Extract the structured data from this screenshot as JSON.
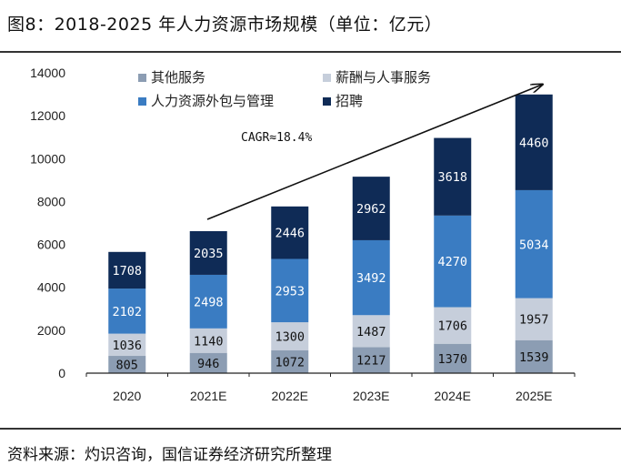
{
  "page": {
    "title": "图8：2018-2025 年人力资源市场规模（单位：亿元）",
    "source": "资料来源：灼识咨询，国信证券经济研究所整理"
  },
  "chart_data": {
    "type": "stacked-bar",
    "title": "图8：2018-2025 年人力资源市场规模（单位：亿元）",
    "unit": "亿元",
    "categories": [
      "2020",
      "2021E",
      "2022E",
      "2023E",
      "2024E",
      "2025E"
    ],
    "series": [
      {
        "name": "其他服务",
        "color": "#8c9db3",
        "label_color": "#111111",
        "values": [
          805,
          946,
          1072,
          1217,
          1370,
          1539
        ]
      },
      {
        "name": "薪酬与人事服务",
        "color": "#c6cedb",
        "label_color": "#111111",
        "values": [
          1036,
          1140,
          1300,
          1487,
          1706,
          1957
        ]
      },
      {
        "name": "人力资源外包与管理",
        "color": "#3a7cc2",
        "label_color": "#ffffff",
        "values": [
          2102,
          2498,
          2953,
          3492,
          4270,
          5034
        ]
      },
      {
        "name": "招聘",
        "color": "#0f2b56",
        "label_color": "#ffffff",
        "values": [
          1708,
          2035,
          2446,
          2962,
          3618,
          4460
        ]
      }
    ],
    "y_ticks": [
      "0",
      "2000",
      "4000",
      "6000",
      "8000",
      "10000",
      "12000",
      "14000"
    ],
    "ylim": [
      0,
      14000
    ],
    "legend_position": "top-left",
    "annotation": "CAGR≈18.4%"
  }
}
